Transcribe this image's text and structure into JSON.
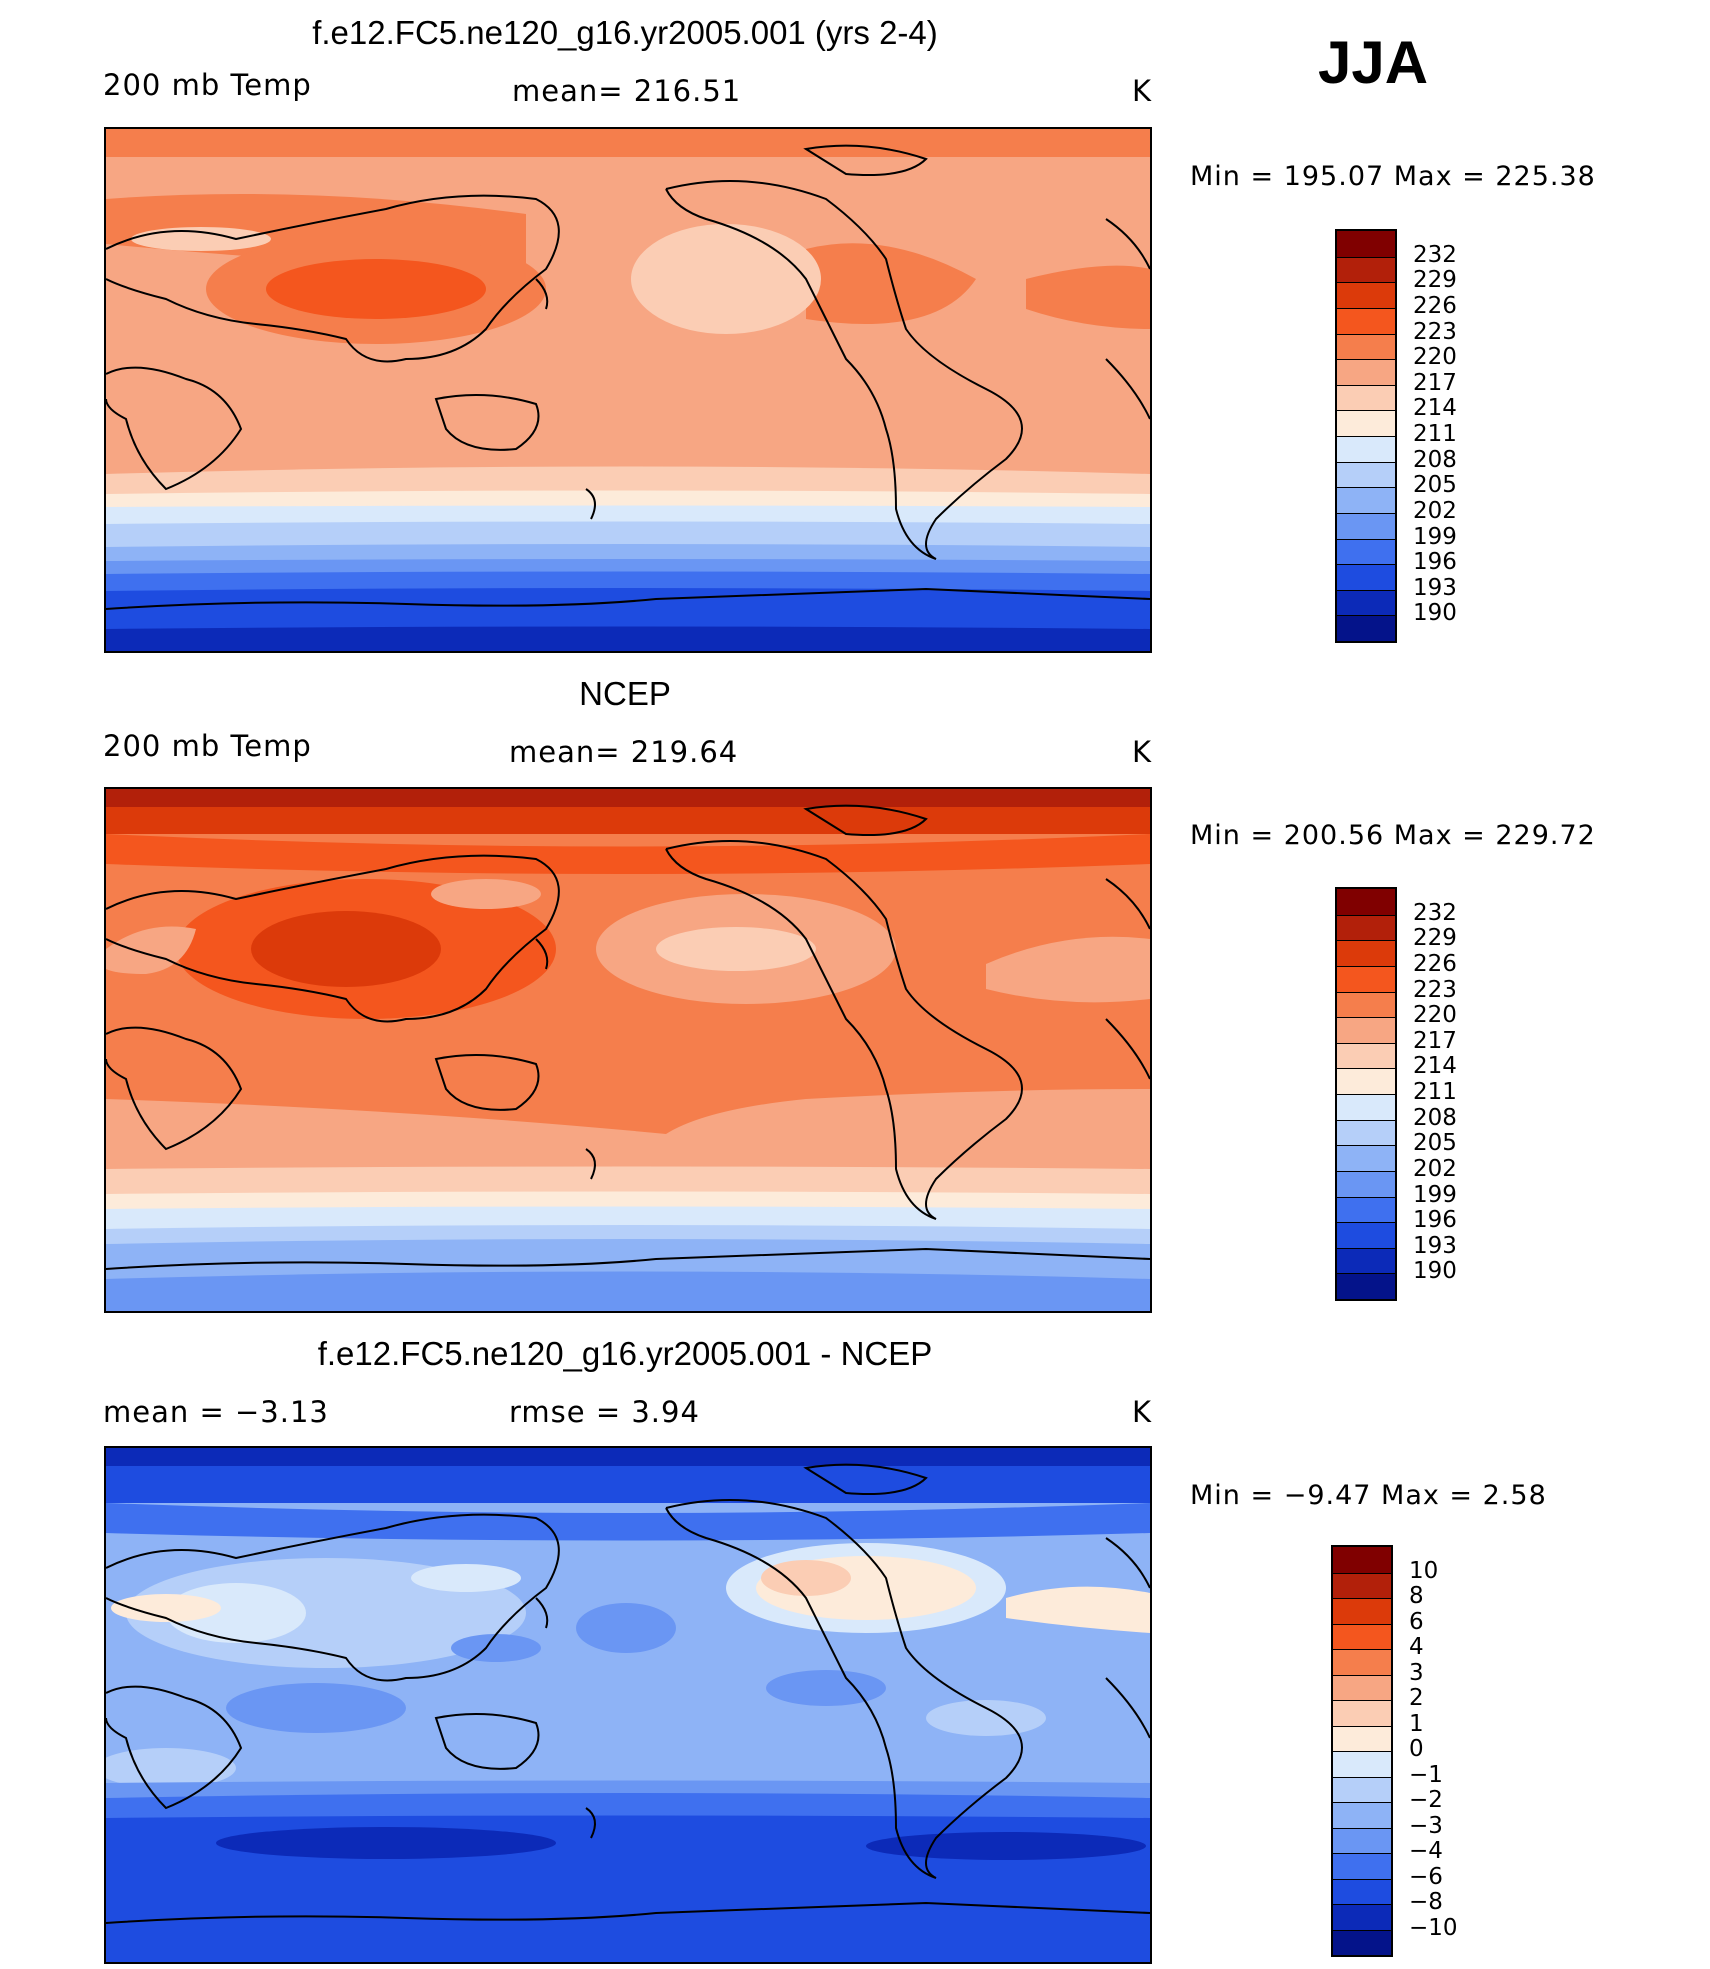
{
  "season": "JJA",
  "panels": [
    {
      "id": "model",
      "title": "f.e12.FC5.ne120_g16.yr2005.001 (yrs 2-4)",
      "left_label": "200 mb Temp",
      "center_label": "mean= 216.51",
      "units": "K",
      "minmax": "Min = 195.07 Max = 225.38",
      "colorbar": [
        "232",
        "229",
        "226",
        "223",
        "220",
        "217",
        "214",
        "211",
        "208",
        "205",
        "202",
        "199",
        "196",
        "193",
        "190"
      ]
    },
    {
      "id": "obs",
      "title": "NCEP",
      "left_label": "200 mb Temp",
      "center_label": "mean= 219.64",
      "units": "K",
      "minmax": "Min = 200.56 Max = 229.72",
      "colorbar": [
        "232",
        "229",
        "226",
        "223",
        "220",
        "217",
        "214",
        "211",
        "208",
        "205",
        "202",
        "199",
        "196",
        "193",
        "190"
      ]
    },
    {
      "id": "diff",
      "title": "f.e12.FC5.ne120_g16.yr2005.001 - NCEP",
      "left_label": "mean =   −3.13",
      "center_label": "rmse =    3.94",
      "units": "K",
      "minmax": "Min =  −9.47 Max =    2.58",
      "colorbar": [
        "10",
        "8",
        "6",
        "4",
        "3",
        "2",
        "1",
        "0",
        "−1",
        "−2",
        "−3",
        "−4",
        "−6",
        "−8",
        "−10"
      ]
    }
  ],
  "colors": {
    "palette": [
      "#800000",
      "#b2200a",
      "#dc3a0a",
      "#f4561e",
      "#f57e4c",
      "#f7a683",
      "#fbcdb4",
      "#fdebda",
      "#d9e9fb",
      "#b5cff9",
      "#8eb3f6",
      "#6a96f3",
      "#3f70ef",
      "#1e4ce0",
      "#0c2ab8",
      "#04138a"
    ]
  }
}
